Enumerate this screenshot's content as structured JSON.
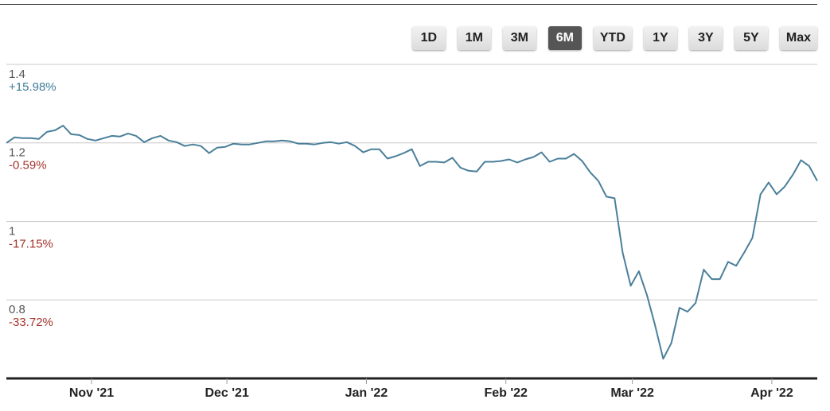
{
  "chart_data": {
    "type": "line",
    "range_buttons": [
      "1D",
      "1M",
      "3M",
      "6M",
      "YTD",
      "1Y",
      "3Y",
      "5Y",
      "Max"
    ],
    "active_button": 3,
    "color": "#4a7f9a",
    "values": [
      1.2,
      1.214,
      1.212,
      1.212,
      1.21,
      1.228,
      1.232,
      1.244,
      1.222,
      1.22,
      1.21,
      1.206,
      1.212,
      1.218,
      1.216,
      1.224,
      1.218,
      1.202,
      1.212,
      1.218,
      1.206,
      1.202,
      1.192,
      1.196,
      1.192,
      1.174,
      1.188,
      1.19,
      1.198,
      1.196,
      1.196,
      1.2,
      1.204,
      1.204,
      1.206,
      1.204,
      1.198,
      1.198,
      1.196,
      1.2,
      1.202,
      1.198,
      1.202,
      1.192,
      1.176,
      1.184,
      1.184,
      1.16,
      1.166,
      1.174,
      1.184,
      1.141,
      1.152,
      1.152,
      1.15,
      1.162,
      1.137,
      1.129,
      1.127,
      1.152,
      1.152,
      1.154,
      1.158,
      1.15,
      1.158,
      1.164,
      1.176,
      1.152,
      1.16,
      1.16,
      1.172,
      1.154,
      1.125,
      1.103,
      1.063,
      1.059,
      0.921,
      0.836,
      0.873,
      0.812,
      0.735,
      0.65,
      0.69,
      0.78,
      0.77,
      0.792,
      0.877,
      0.853,
      0.853,
      0.897,
      0.887,
      0.921,
      0.958,
      1.069,
      1.099,
      1.069,
      1.089,
      1.119,
      1.156,
      1.141,
      1.103
    ],
    "xlim": [
      0,
      100
    ],
    "xticks": [
      {
        "value": 10.5,
        "label": "Nov '21"
      },
      {
        "value": 27.2,
        "label": "Dec '21"
      },
      {
        "value": 44.4,
        "label": "Jan '22"
      },
      {
        "value": 61.6,
        "label": "Feb '22"
      },
      {
        "value": 77.2,
        "label": "Mar '22"
      },
      {
        "value": 94.4,
        "label": "Apr '22"
      }
    ],
    "ylim": [
      0.6,
      1.4
    ],
    "yticks": [
      0.8,
      1,
      1.2,
      1.4
    ],
    "ytick_changes": [
      "-33.72%",
      "-17.15%",
      "-0.59%",
      "+15.98%"
    ],
    "grid": true
  }
}
